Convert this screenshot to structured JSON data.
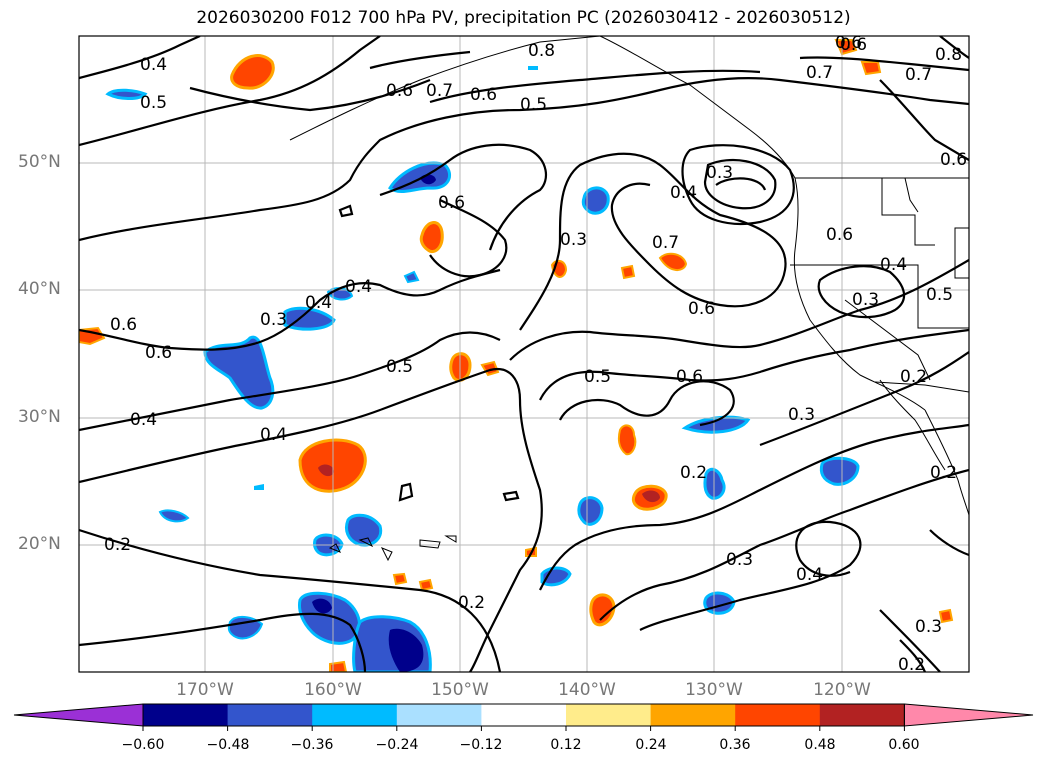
{
  "title": "2026030200 F012 700 hPa PV, precipitation PC (2026030412 - 2026030512)",
  "map": {
    "lat_labels": [
      {
        "text": "50°N",
        "lat": 50
      },
      {
        "text": "40°N",
        "lat": 40
      },
      {
        "text": "30°N",
        "lat": 30
      },
      {
        "text": "20°N",
        "lat": 20
      }
    ],
    "lon_labels": [
      {
        "text": "170°W",
        "lon": -170
      },
      {
        "text": "160°W",
        "lon": -160
      },
      {
        "text": "150°W",
        "lon": -150
      },
      {
        "text": "140°W",
        "lon": -140
      },
      {
        "text": "130°W",
        "lon": -130
      },
      {
        "text": "120°W",
        "lon": -120
      }
    ],
    "extent": {
      "lon_min": -180,
      "lon_max": -110,
      "lat_min": 10,
      "lat_max": 60
    },
    "contour_labels": [
      "0.4",
      "0.5",
      "0.6",
      "0.8",
      "0.7",
      "0.6",
      "0.5",
      "0.8",
      "0.7",
      "0.6",
      "0.7",
      "0.4",
      "0.3",
      "0.6",
      "0.3",
      "0.7",
      "0.6",
      "0.4",
      "0.5",
      "0.3",
      "0.4",
      "0.4",
      "0.3",
      "0.6",
      "0.6",
      "0.5",
      "0.5",
      "0.6",
      "0.6",
      "0.4",
      "0.3",
      "0.4",
      "0.2",
      "0.2",
      "0.2",
      "0.3",
      "0.4",
      "0.2",
      "0.3",
      "0.2",
      "0.2",
      "0.6",
      "0.6"
    ]
  },
  "colorbar": {
    "colors": [
      "#9b30d6",
      "#00008b",
      "#3355cc",
      "#00bbff",
      "#aae0ff",
      "#ffffff",
      "#ffec8b",
      "#ffa500",
      "#ff4500",
      "#b22222",
      "#ff88aa"
    ],
    "tick_labels": [
      "−0.60",
      "−0.48",
      "−0.36",
      "−0.24",
      "−0.12",
      "0.12",
      "0.24",
      "0.36",
      "0.48",
      "0.60"
    ]
  }
}
